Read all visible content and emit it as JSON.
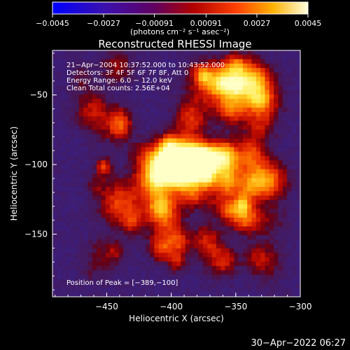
{
  "chart_data": {
    "type": "heatmap",
    "title": "Reconstructed RHESSI Image",
    "xlabel": "Heliocentric X (arcsec)",
    "ylabel": "Heliocentric Y (arcsec)",
    "xlim": [
      -492,
      -300
    ],
    "ylim": [
      -195,
      -18
    ],
    "x_ticks": [
      -450,
      -400,
      -350,
      -300
    ],
    "y_ticks": [
      -50,
      -100,
      -150
    ],
    "x_tick_labels": [
      "−450",
      "−400",
      "−350",
      "−300"
    ],
    "y_tick_labels": [
      "−50",
      "−100",
      "−150"
    ],
    "colorbar": {
      "min": -0.0045,
      "max": 0.0045,
      "ticks": [
        -0.0045,
        -0.0027,
        -0.00091,
        0.00091,
        0.0027,
        0.0045
      ],
      "tick_labels": [
        "−0.0045",
        "−0.0027",
        "−0.00091",
        "0.00091",
        "0.0027",
        "0.0045"
      ],
      "label": "(photons cm⁻² s⁻¹ asec⁻²)",
      "colormap": "blue-purple-red-orange-yellow-white"
    },
    "annotations": [
      "21−Apr−2004 10:37:52.000 to 10:43:52.000",
      "Detectors: 3F 4F 5F 6F 7F 8F, Att 0",
      "Energy Range: 6.0 − 12.0 keV",
      "Clean     Total counts: 2.56E+04"
    ],
    "peak_label": "Position of Peak = [−389,−100]",
    "peak": {
      "x": -389,
      "y": -100
    }
  },
  "footer": {
    "timestamp": "30−Apr−2022 06:27"
  }
}
